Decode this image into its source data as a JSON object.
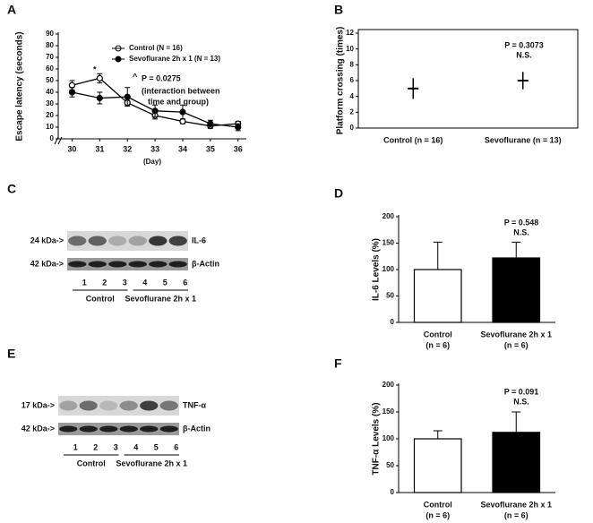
{
  "chart_data": [
    {
      "type": "line",
      "panel": "A",
      "ylabel": "Escape latency (seconds)",
      "xlabel": "(Day)",
      "x": [
        30,
        31,
        32,
        33,
        34,
        35,
        36
      ],
      "xlim": [
        29.5,
        36.3
      ],
      "xticks": [
        30,
        31,
        32,
        33,
        34,
        35,
        36
      ],
      "ylim": [
        0,
        90
      ],
      "yticks": [
        0,
        10,
        20,
        30,
        40,
        50,
        60,
        70,
        80,
        90
      ],
      "series": [
        {
          "name": "Control (N = 16)",
          "color": "#000000",
          "marker_fill": "#ffffff",
          "values": [
            46,
            52,
            31,
            20,
            15,
            11,
            13
          ],
          "errors": [
            4,
            4,
            2,
            3,
            2,
            2,
            2
          ]
        },
        {
          "name": "Sevoflurane 2h x 1 (N = 13)",
          "color": "#000000",
          "marker_fill": "#000000",
          "values": [
            40,
            35,
            36,
            24,
            23,
            13,
            10
          ],
          "errors": [
            4,
            5,
            8,
            5,
            6,
            3,
            3
          ]
        }
      ],
      "annotations": [
        "*",
        "^",
        "P = 0.0275",
        "(interaction between",
        "time and group)"
      ]
    },
    {
      "type": "errorbar",
      "panel": "B",
      "ylabel": "Platform crossing (times)",
      "categories": [
        "Control (n = 16)",
        "Sevoflurane (n = 13)"
      ],
      "values": [
        5,
        6
      ],
      "errors": [
        1.3,
        1.1
      ],
      "ylim": [
        0,
        12
      ],
      "yticks": [
        0,
        2,
        4,
        6,
        8,
        10,
        12
      ],
      "color": "#000000",
      "annotations": [
        "P = 0.3073",
        "N.S."
      ]
    },
    {
      "type": "bar",
      "panel": "D",
      "ylabel": "IL-6 Levels (%)",
      "categories": [
        "Control",
        "Sevoflurane 2h x 1"
      ],
      "sublabels": [
        "(n = 6)",
        "(n = 6)"
      ],
      "values": [
        100,
        122
      ],
      "errors": [
        52,
        30
      ],
      "colors": [
        "#ffffff",
        "#000000"
      ],
      "ylim": [
        0,
        200
      ],
      "yticks": [
        0,
        50,
        100,
        150,
        200
      ],
      "annotations": [
        "P = 0.548",
        "N.S."
      ]
    },
    {
      "type": "bar",
      "panel": "F",
      "ylabel": "TNF-α Levels (%)",
      "categories": [
        "Control",
        "Sevoflurane 2h x 1"
      ],
      "sublabels": [
        "(n = 6)",
        "(n = 6)"
      ],
      "values": [
        100,
        112
      ],
      "errors": [
        15,
        38
      ],
      "colors": [
        "#ffffff",
        "#000000"
      ],
      "ylim": [
        0,
        200
      ],
      "yticks": [
        0,
        50,
        100,
        150,
        200
      ],
      "annotations": [
        "P = 0.091",
        "N.S."
      ]
    }
  ],
  "blots": [
    {
      "panel": "C",
      "rows": [
        {
          "marker": "24 kDa->",
          "name": "IL-6"
        },
        {
          "marker": "42 kDa->",
          "name": "β-Actin"
        }
      ],
      "lanes": [
        "1",
        "2",
        "3",
        "4",
        "5",
        "6"
      ],
      "groups": [
        "Control",
        "Sevoflurane 2h x 1"
      ]
    },
    {
      "panel": "E",
      "rows": [
        {
          "marker": "17 kDa->",
          "name": "TNF-α"
        },
        {
          "marker": "42 kDa->",
          "name": "β-Actin"
        }
      ],
      "lanes": [
        "1",
        "2",
        "3",
        "4",
        "5",
        "6"
      ],
      "groups": [
        "Control",
        "Sevoflurane 2h x 1"
      ]
    }
  ]
}
